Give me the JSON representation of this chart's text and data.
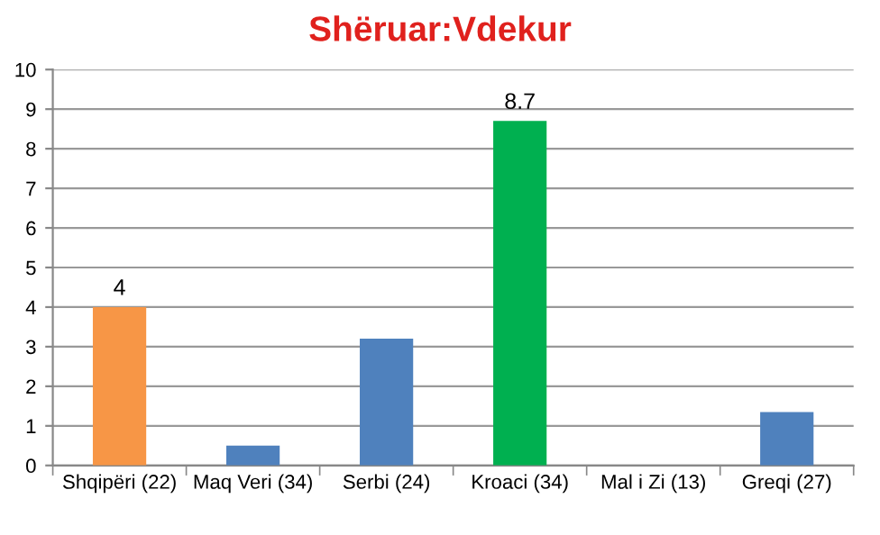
{
  "chart_data": {
    "type": "bar",
    "title": "Shëruar:Vdekur",
    "categories": [
      "Shqipëri (22)",
      "Maq Veri (34)",
      "Serbi (24)",
      "Kroaci (34)",
      "Mal i Zi (13)",
      "Greqi (27)"
    ],
    "values": [
      4,
      0.5,
      3.2,
      8.7,
      0,
      1.35
    ],
    "colors": [
      "#f79646",
      "#4f81bd",
      "#4f81bd",
      "#00b050",
      "#4f81bd",
      "#4f81bd"
    ],
    "value_labels": [
      "4",
      null,
      null,
      "8.7",
      null,
      null
    ],
    "ylim": [
      0,
      10
    ],
    "yticks": [
      0,
      1,
      2,
      3,
      4,
      5,
      6,
      7,
      8,
      9,
      10
    ],
    "grid": "y",
    "legend": false
  }
}
